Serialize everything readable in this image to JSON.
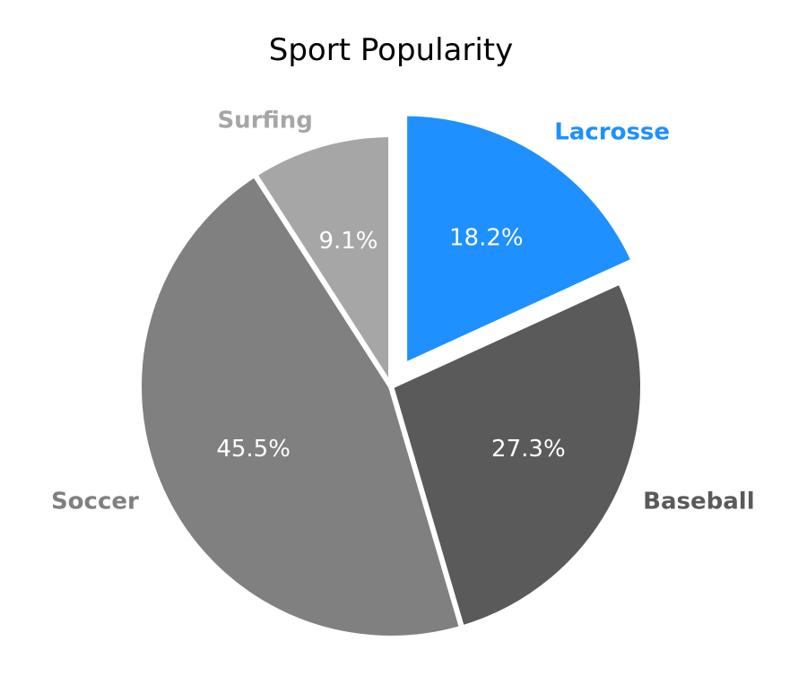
{
  "chart_data": {
    "type": "pie",
    "title": "Sport Popularity",
    "start_angle_deg": 90,
    "direction": "clockwise",
    "slices": [
      {
        "label": "Lacrosse",
        "value": 18.2,
        "pct_label": "18.2%",
        "color": "#1e90ff",
        "label_color": "#1e90ff",
        "exploded": true
      },
      {
        "label": "Baseball",
        "value": 27.3,
        "pct_label": "27.3%",
        "color": "#5a5a5a",
        "label_color": "#5a5a5a",
        "exploded": false
      },
      {
        "label": "Soccer",
        "value": 45.5,
        "pct_label": "45.5%",
        "color": "#808080",
        "label_color": "#808080",
        "exploded": false
      },
      {
        "label": "Surfing",
        "value": 9.1,
        "pct_label": "9.1%",
        "color": "#a6a6a6",
        "label_color": "#a6a6a6",
        "exploded": false
      }
    ]
  }
}
